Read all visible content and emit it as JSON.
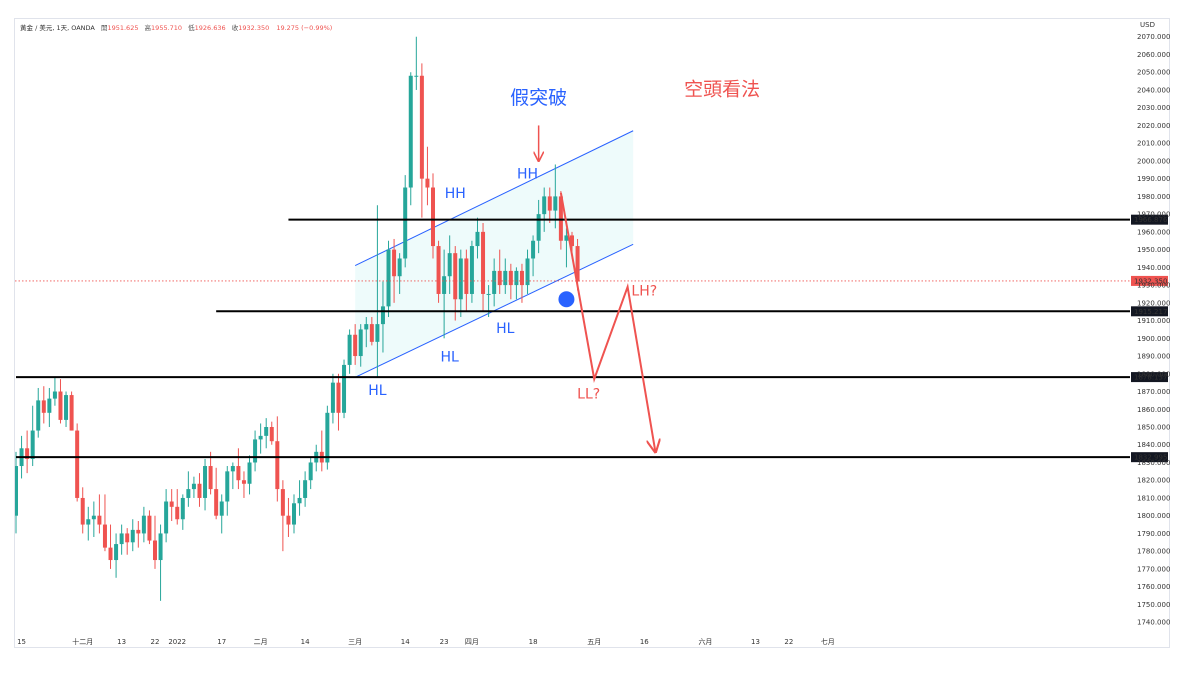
{
  "header": {
    "symbol": "黃金 / 美元, 1天, OANDA",
    "o_label": "開",
    "o": "1951.625",
    "h_label": "高",
    "h": "1955.710",
    "l_label": "低",
    "l": "1926.636",
    "c_label": "收",
    "c": "1932.350",
    "change": "19.275 (−0.99%)"
  },
  "chart_data": {
    "type": "candlestick",
    "currency": "USD",
    "ylim": [
      1735,
      2080
    ],
    "y_ticks": [
      1740,
      1750,
      1760,
      1770,
      1780,
      1790,
      1800,
      1810,
      1820,
      1830,
      1840,
      1850,
      1860,
      1870,
      1880,
      1890,
      1900,
      1910,
      1920,
      1930,
      1940,
      1950,
      1960,
      1970,
      1980,
      1990,
      2000,
      2010,
      2020,
      2030,
      2040,
      2050,
      2060,
      2070
    ],
    "x_ticks": [
      {
        "label": "15",
        "i": 1
      },
      {
        "label": "十二月",
        "i": 12
      },
      {
        "label": "13",
        "i": 19
      },
      {
        "label": "22",
        "i": 25
      },
      {
        "label": "2022",
        "i": 29
      },
      {
        "label": "17",
        "i": 37
      },
      {
        "label": "二月",
        "i": 44
      },
      {
        "label": "14",
        "i": 52
      },
      {
        "label": "三月",
        "i": 61
      },
      {
        "label": "14",
        "i": 70
      },
      {
        "label": "23",
        "i": 77
      },
      {
        "label": "四月",
        "i": 82
      },
      {
        "label": "18",
        "i": 93
      },
      {
        "label": "五月",
        "i": 104
      },
      {
        "label": "16",
        "i": 113
      },
      {
        "label": "六月",
        "i": 124
      },
      {
        "label": "13",
        "i": 133
      },
      {
        "label": "22",
        "i": 139
      },
      {
        "label": "七月",
        "i": 146
      }
    ],
    "colors": {
      "up": "#26a69a",
      "down": "#ef5350"
    },
    "last_price": {
      "value": 1932.35,
      "label": "1932.350",
      "color": "#ef5350"
    },
    "levels": [
      {
        "value": 1966.876,
        "label": "1966.876",
        "start_i": 49
      },
      {
        "value": 1915.217,
        "label": "1915.217",
        "start_i": 36
      },
      {
        "value": 1878.137,
        "label": "1878.137",
        "start_i": 0
      },
      {
        "value": 1832.995,
        "label": "1832.995",
        "start_i": 0
      }
    ],
    "channel": {
      "upper": [
        [
          61,
          1941
        ],
        [
          111,
          2017
        ]
      ],
      "lower": [
        [
          61,
          1878
        ],
        [
          111,
          1953
        ]
      ],
      "color": "#2962ff",
      "fill": "#e0f7f7"
    },
    "candles": [
      [
        1800,
        1836,
        1790,
        1828
      ],
      [
        1828,
        1845,
        1821,
        1838
      ],
      [
        1838,
        1848,
        1824,
        1832
      ],
      [
        1832,
        1862,
        1828,
        1848
      ],
      [
        1848,
        1872,
        1844,
        1865
      ],
      [
        1865,
        1873,
        1852,
        1858
      ],
      [
        1858,
        1872,
        1850,
        1866
      ],
      [
        1866,
        1878,
        1862,
        1870
      ],
      [
        1870,
        1877,
        1852,
        1854
      ],
      [
        1854,
        1870,
        1850,
        1868
      ],
      [
        1868,
        1870,
        1848,
        1848
      ],
      [
        1848,
        1852,
        1808,
        1810
      ],
      [
        1810,
        1816,
        1790,
        1795
      ],
      [
        1795,
        1805,
        1786,
        1798
      ],
      [
        1798,
        1808,
        1788,
        1800
      ],
      [
        1800,
        1812,
        1790,
        1795
      ],
      [
        1795,
        1812,
        1780,
        1782
      ],
      [
        1782,
        1795,
        1770,
        1775
      ],
      [
        1775,
        1790,
        1765,
        1784
      ],
      [
        1784,
        1795,
        1778,
        1790
      ],
      [
        1790,
        1793,
        1778,
        1785
      ],
      [
        1785,
        1798,
        1780,
        1792
      ],
      [
        1792,
        1797,
        1782,
        1790
      ],
      [
        1790,
        1805,
        1785,
        1800
      ],
      [
        1800,
        1803,
        1784,
        1786
      ],
      [
        1786,
        1800,
        1770,
        1775
      ],
      [
        1775,
        1795,
        1752,
        1790
      ],
      [
        1790,
        1815,
        1785,
        1808
      ],
      [
        1808,
        1815,
        1797,
        1805
      ],
      [
        1805,
        1815,
        1795,
        1798
      ],
      [
        1798,
        1812,
        1792,
        1810
      ],
      [
        1810,
        1825,
        1805,
        1815
      ],
      [
        1815,
        1822,
        1810,
        1818
      ],
      [
        1818,
        1824,
        1805,
        1810
      ],
      [
        1810,
        1832,
        1803,
        1828
      ],
      [
        1828,
        1836,
        1812,
        1815
      ],
      [
        1815,
        1827,
        1798,
        1800
      ],
      [
        1800,
        1812,
        1790,
        1808
      ],
      [
        1808,
        1828,
        1800,
        1825
      ],
      [
        1825,
        1830,
        1815,
        1828
      ],
      [
        1828,
        1838,
        1815,
        1820
      ],
      [
        1820,
        1825,
        1810,
        1818
      ],
      [
        1818,
        1834,
        1812,
        1830
      ],
      [
        1830,
        1848,
        1825,
        1843
      ],
      [
        1843,
        1852,
        1835,
        1845
      ],
      [
        1845,
        1855,
        1838,
        1850
      ],
      [
        1850,
        1853,
        1840,
        1842
      ],
      [
        1842,
        1856,
        1808,
        1815
      ],
      [
        1815,
        1820,
        1780,
        1800
      ],
      [
        1800,
        1810,
        1788,
        1795
      ],
      [
        1795,
        1812,
        1790,
        1807
      ],
      [
        1807,
        1820,
        1800,
        1810
      ],
      [
        1810,
        1825,
        1805,
        1820
      ],
      [
        1820,
        1833,
        1815,
        1830
      ],
      [
        1830,
        1840,
        1825,
        1836
      ],
      [
        1836,
        1848,
        1825,
        1830
      ],
      [
        1830,
        1862,
        1826,
        1858
      ],
      [
        1858,
        1880,
        1852,
        1875
      ],
      [
        1875,
        1880,
        1848,
        1858
      ],
      [
        1858,
        1888,
        1855,
        1885
      ],
      [
        1885,
        1905,
        1880,
        1902
      ],
      [
        1902,
        1908,
        1885,
        1890
      ],
      [
        1890,
        1908,
        1884,
        1905
      ],
      [
        1905,
        1912,
        1895,
        1908
      ],
      [
        1908,
        1912,
        1896,
        1898
      ],
      [
        1898,
        1975,
        1878,
        1908
      ],
      [
        1908,
        1932,
        1892,
        1918
      ],
      [
        1918,
        1955,
        1912,
        1950
      ],
      [
        1950,
        1956,
        1920,
        1935
      ],
      [
        1935,
        1948,
        1925,
        1945
      ],
      [
        1945,
        1992,
        1940,
        1985
      ],
      [
        1985,
        2050,
        1975,
        2048
      ],
      [
        2048,
        2070,
        2040,
        2048
      ],
      [
        2048,
        2055,
        1968,
        1990
      ],
      [
        1990,
        2008,
        1975,
        1985
      ],
      [
        1985,
        1993,
        1945,
        1952
      ],
      [
        1952,
        1955,
        1920,
        1925
      ],
      [
        1925,
        1950,
        1900,
        1935
      ],
      [
        1935,
        1958,
        1925,
        1948
      ],
      [
        1948,
        1952,
        1910,
        1922
      ],
      [
        1922,
        1950,
        1912,
        1945
      ],
      [
        1945,
        1950,
        1915,
        1925
      ],
      [
        1925,
        1955,
        1920,
        1952
      ],
      [
        1952,
        1968,
        1945,
        1960
      ],
      [
        1960,
        1965,
        1915,
        1925
      ],
      [
        1925,
        1930,
        1912,
        1925
      ],
      [
        1925,
        1945,
        1918,
        1938
      ],
      [
        1938,
        1950,
        1925,
        1930
      ],
      [
        1930,
        1945,
        1925,
        1938
      ],
      [
        1938,
        1942,
        1922,
        1930
      ],
      [
        1930,
        1940,
        1922,
        1938
      ],
      [
        1938,
        1942,
        1920,
        1930
      ],
      [
        1930,
        1950,
        1925,
        1945
      ],
      [
        1945,
        1958,
        1935,
        1955
      ],
      [
        1955,
        1978,
        1948,
        1970
      ],
      [
        1970,
        1985,
        1960,
        1980
      ],
      [
        1980,
        1985,
        1965,
        1972
      ],
      [
        1972,
        1998,
        1962,
        1980
      ],
      [
        1980,
        1983,
        1950,
        1955
      ],
      [
        1955,
        1962,
        1940,
        1958
      ],
      [
        1958,
        1960,
        1945,
        1952
      ],
      [
        1952,
        1956,
        1927,
        1932
      ]
    ],
    "annotations": [
      {
        "text": "假突破",
        "i": 94,
        "y": 2032,
        "color": "#2962ff",
        "size": 19
      },
      {
        "text": "HH",
        "i": 79,
        "y": 1979,
        "color": "#2962ff",
        "size": 14
      },
      {
        "text": "HH",
        "i": 92,
        "y": 1990,
        "color": "#2962ff",
        "size": 14
      },
      {
        "text": "HL",
        "i": 78,
        "y": 1887,
        "color": "#2962ff",
        "size": 14
      },
      {
        "text": "HL",
        "i": 88,
        "y": 1903,
        "color": "#2962ff",
        "size": 14
      },
      {
        "text": "HL",
        "i": 65,
        "y": 1868,
        "color": "#2962ff",
        "size": 14
      },
      {
        "text": "空頭看法",
        "i": 127,
        "y": 2037,
        "color": "#ef5350",
        "size": 19
      },
      {
        "text": "LL?",
        "i": 103,
        "y": 1866,
        "color": "#ef5350",
        "size": 14
      },
      {
        "text": "LH?",
        "i": 113,
        "y": 1924,
        "color": "#ef5350",
        "size": 14
      }
    ],
    "bear_path": [
      [
        98,
        1982
      ],
      [
        104,
        1877
      ],
      [
        110,
        1929
      ],
      [
        115,
        1836
      ]
    ],
    "marker": {
      "i": 99,
      "y": 1922,
      "color": "#2962ff"
    }
  }
}
